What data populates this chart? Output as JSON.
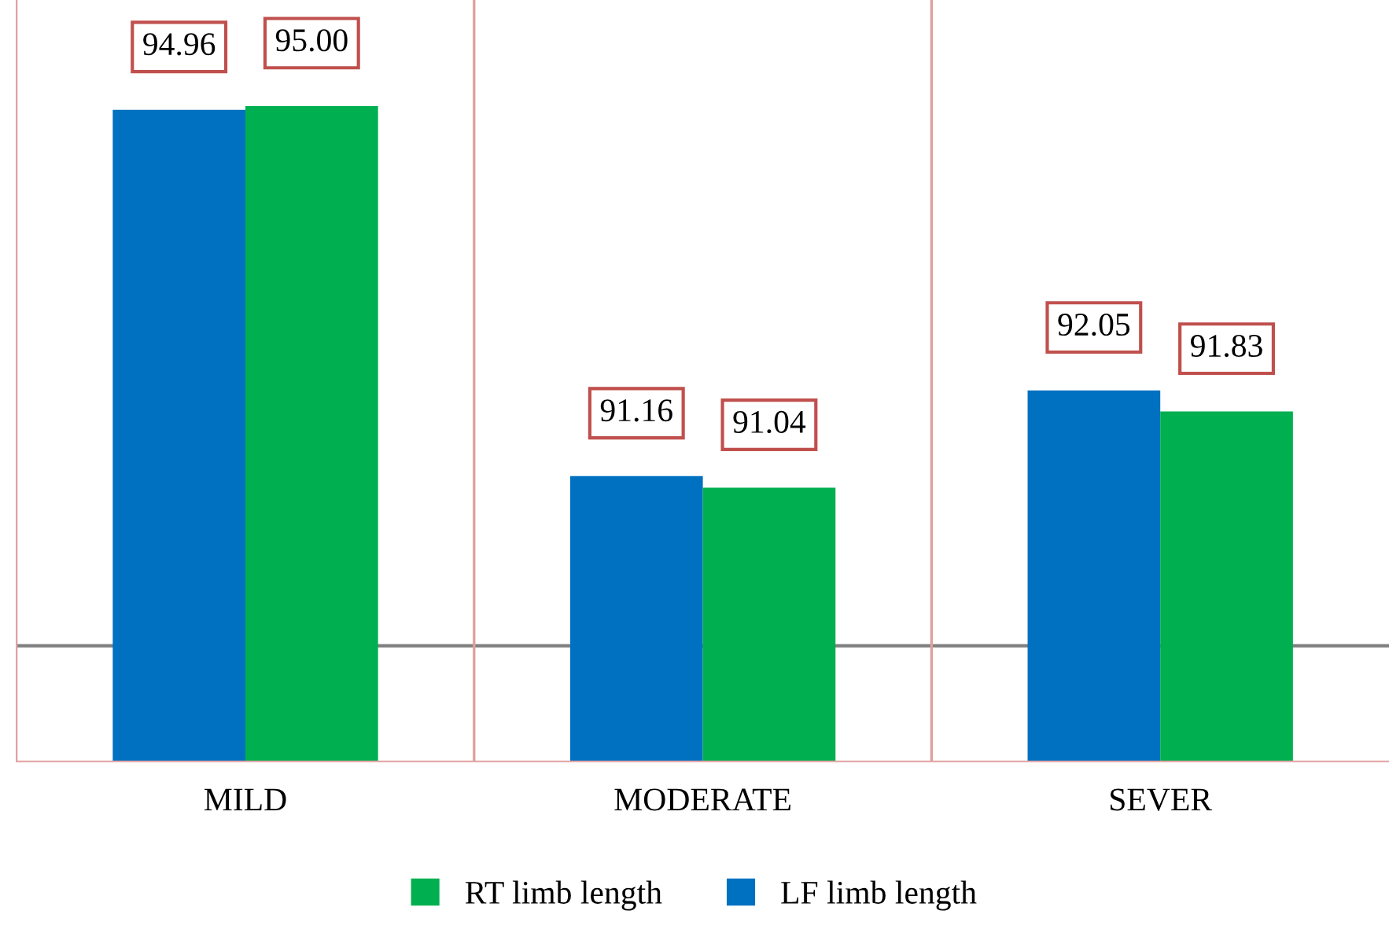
{
  "chart_data": {
    "type": "bar",
    "categories": [
      "MILD",
      "MODERATE",
      "SEVER"
    ],
    "series": [
      {
        "name": "LF limb length",
        "color": "#0070c0",
        "values": [
          94.96,
          91.16,
          92.05
        ],
        "value_labels": [
          "94.96",
          "91.16",
          "92.05"
        ]
      },
      {
        "name": "RT limb length",
        "color": "#00b050",
        "values": [
          95.0,
          91.04,
          91.83
        ],
        "value_labels": [
          "95.00",
          "91.04",
          "91.83"
        ]
      }
    ],
    "ylim": [
      88.2,
      96.1
    ],
    "tick_labels": "x",
    "ref_lines": [
      {
        "axis": "y",
        "value": 89.4,
        "color": "#808080"
      }
    ],
    "grid": false,
    "legend": "bottom"
  }
}
